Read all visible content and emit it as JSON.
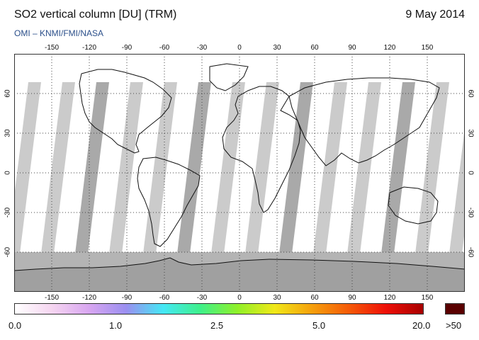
{
  "header": {
    "title": "SO2 vertical column [DU] (TRM)",
    "date": "9 May 2014",
    "subtitle": "OMI  –  KNMI/FMI/NASA"
  },
  "map": {
    "lon_ticks": [
      "-150",
      "-120",
      "-90",
      "-60",
      "-30",
      "0",
      "30",
      "60",
      "90",
      "120",
      "150"
    ],
    "lat_ticks": [
      "60",
      "30",
      "0",
      "-30",
      "-60"
    ],
    "lon_values": [
      -150,
      -120,
      -90,
      -60,
      -30,
      0,
      30,
      60,
      90,
      120,
      150
    ],
    "lat_values": [
      60,
      30,
      0,
      -30,
      -60
    ],
    "lon_range": [
      -180,
      180
    ],
    "lat_range": [
      -90,
      90
    ],
    "colors": {
      "no_data_gap": "#cbcbcb",
      "swath_edge": "#a9a9a9",
      "polar_no_data": "#b4b4b4",
      "antarctica": "#a0a0a0",
      "coastline": "#111111"
    }
  },
  "colorbar": {
    "labels": [
      "0.0",
      "1.0",
      "2.5",
      "5.0",
      "20.0"
    ],
    "over_label": ">50",
    "stops": [
      "#ffffff",
      "#f5d5f0",
      "#d8a6f0",
      "#9b8ff0",
      "#44e8f5",
      "#3ef08a",
      "#8ff028",
      "#f0e818",
      "#f5a00c",
      "#f55a08",
      "#ee0f07",
      "#a80000"
    ],
    "over_color": "#5a0000"
  }
}
